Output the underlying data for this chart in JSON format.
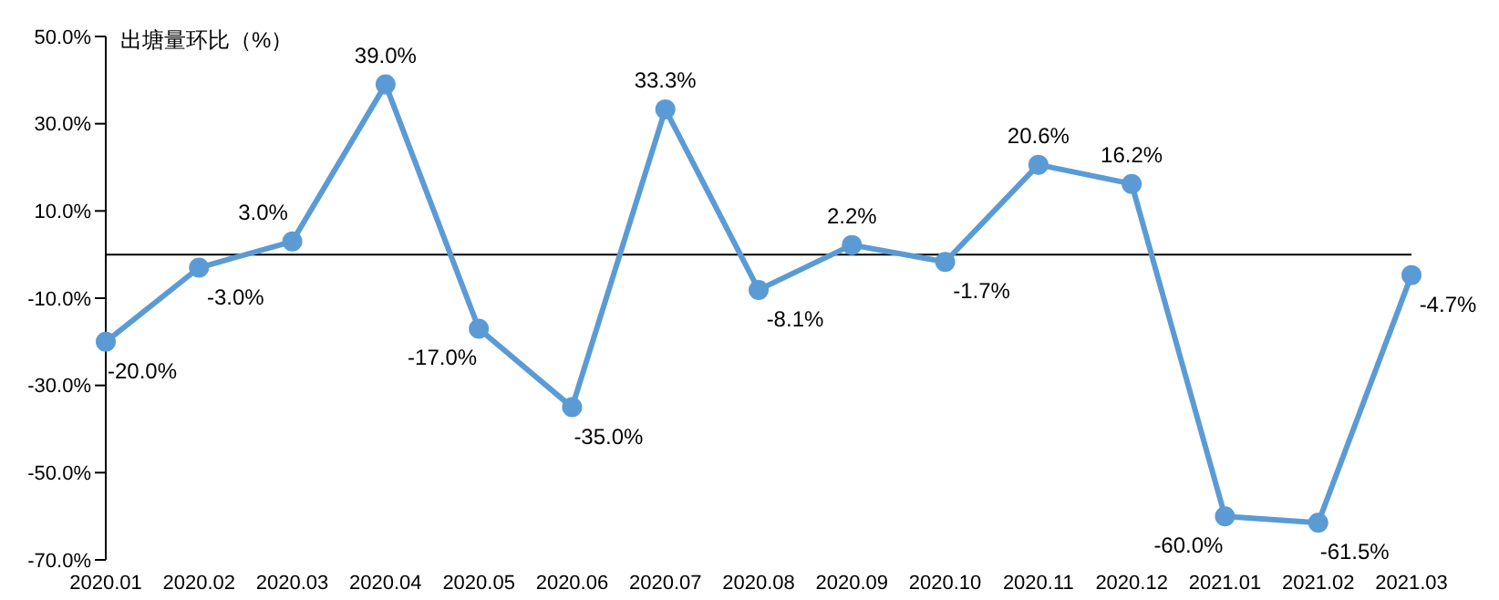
{
  "chart_data": {
    "type": "line",
    "ylabel": "出塘量环比（%）",
    "categories": [
      "2020.01",
      "2020.02",
      "2020.03",
      "2020.04",
      "2020.05",
      "2020.06",
      "2020.07",
      "2020.08",
      "2020.09",
      "2020.10",
      "2020.11",
      "2020.12",
      "2021.01",
      "2021.02",
      "2021.03"
    ],
    "series": [
      {
        "color": "#5b9bd5",
        "values": [
          -20,
          -3,
          3,
          39,
          -17,
          -35,
          33.3,
          -8.1,
          2.2,
          -1.7,
          20.6,
          16.2,
          -60,
          -61.5,
          -4.7
        ],
        "value_labels": [
          "-20.0%",
          "-3.0%",
          "3.0%",
          "39.0%",
          "-17.0%",
          "-35.0%",
          "33.3%",
          "-8.1%",
          "2.2%",
          "-1.7%",
          "20.6%",
          "16.2%",
          "-60.0%",
          "-61.5%",
          "-4.7%"
        ]
      }
    ],
    "ylim": [
      -70,
      50
    ],
    "yticks": [
      {
        "value": -70,
        "label": "-70.0%"
      },
      {
        "value": -50,
        "label": "-50.0%"
      },
      {
        "value": -30,
        "label": "-30.0%"
      },
      {
        "value": -10,
        "label": "-10.0%"
      },
      {
        "value": 10,
        "label": "10.0%"
      },
      {
        "value": 30,
        "label": "30.0%"
      },
      {
        "value": 50,
        "label": "50.0%"
      }
    ],
    "grid": false,
    "legend": false,
    "marker": "circle",
    "line_style": "solid"
  }
}
